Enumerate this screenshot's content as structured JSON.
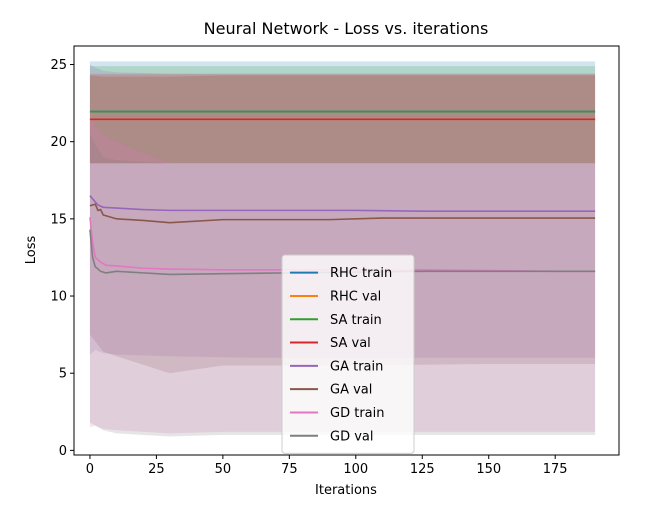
{
  "chart_data": {
    "type": "line",
    "title": "Neural Network - Loss vs. iterations",
    "xlabel": "Iterations",
    "ylabel": "Loss",
    "xlim": [
      -6,
      199
    ],
    "ylim": [
      -0.3,
      26.2
    ],
    "xticks": [
      0,
      25,
      50,
      75,
      100,
      125,
      150,
      175
    ],
    "yticks": [
      0,
      5,
      10,
      15,
      20,
      25
    ],
    "grid": false,
    "legend_position": "lower center",
    "series": [
      {
        "name": "RHC train",
        "color": "#1f77b4",
        "x": [
          0,
          190
        ],
        "y": [
          21.95,
          21.95
        ],
        "band_x": [
          0,
          190
        ],
        "band_lower": [
          18.6,
          18.6
        ],
        "band_upper": [
          25.2,
          25.2
        ]
      },
      {
        "name": "RHC val",
        "color": "#ff7f0e",
        "x": [
          0,
          190
        ],
        "y": [
          21.45,
          21.45
        ],
        "band_x": [
          0,
          190
        ],
        "band_lower": [
          18.6,
          18.6
        ],
        "band_upper": [
          24.3,
          24.3
        ]
      },
      {
        "name": "SA train",
        "color": "#2ca02c",
        "x": [
          0,
          190
        ],
        "y": [
          21.95,
          21.95
        ],
        "band_x": [
          0,
          190
        ],
        "band_lower": [
          18.6,
          18.6
        ],
        "band_upper": [
          24.9,
          24.9
        ]
      },
      {
        "name": "SA val",
        "color": "#d62728",
        "x": [
          0,
          190
        ],
        "y": [
          21.45,
          21.45
        ],
        "band_x": [
          0,
          190
        ],
        "band_lower": [
          18.6,
          18.6
        ],
        "band_upper": [
          24.4,
          24.4
        ]
      },
      {
        "name": "GA train",
        "color": "#9467bd",
        "x": [
          0,
          1,
          3,
          5,
          10,
          20,
          30,
          50,
          75,
          100,
          125,
          150,
          175,
          190
        ],
        "y": [
          16.5,
          16.3,
          15.9,
          15.75,
          15.7,
          15.6,
          15.55,
          15.55,
          15.55,
          15.55,
          15.5,
          15.5,
          15.5,
          15.5
        ],
        "band_x": [
          0,
          2,
          5,
          10,
          30,
          60,
          100,
          150,
          190
        ],
        "band_lower": [
          6.2,
          6.5,
          6.3,
          6.2,
          6.1,
          6.0,
          6.0,
          6.0,
          6.0
        ],
        "band_upper": [
          25.0,
          24.8,
          24.6,
          24.5,
          24.4,
          24.4,
          24.4,
          24.4,
          24.4
        ]
      },
      {
        "name": "GA val",
        "color": "#8c564b",
        "x": [
          0,
          2,
          3,
          4,
          5,
          6,
          10,
          20,
          30,
          50,
          75,
          90,
          110,
          150,
          190
        ],
        "y": [
          15.85,
          15.95,
          15.55,
          15.6,
          15.25,
          15.2,
          15.0,
          14.9,
          14.75,
          14.95,
          14.95,
          14.95,
          15.05,
          15.05,
          15.05
        ],
        "band_x": [
          0,
          5,
          10,
          30,
          50,
          100,
          150,
          190
        ],
        "band_lower": [
          7.5,
          6.4,
          6.1,
          5.0,
          5.5,
          5.5,
          5.6,
          5.6
        ],
        "band_upper": [
          24.3,
          24.2,
          24.2,
          24.2,
          24.3,
          24.3,
          24.3,
          24.3
        ]
      },
      {
        "name": "GD train",
        "color": "#e377c2",
        "x": [
          0,
          1,
          2,
          4,
          6,
          10,
          20,
          30,
          50,
          75,
          100,
          125,
          150,
          175,
          190
        ],
        "y": [
          15.1,
          13.5,
          12.5,
          12.2,
          12.0,
          11.95,
          11.8,
          11.75,
          11.7,
          11.7,
          11.7,
          11.7,
          11.65,
          11.6,
          11.6
        ],
        "band_x": [
          0,
          2,
          5,
          10,
          30,
          50,
          100,
          150,
          190
        ],
        "band_lower": [
          1.5,
          1.6,
          1.4,
          1.3,
          1.1,
          1.2,
          1.2,
          1.2,
          1.2
        ],
        "band_upper": [
          22.0,
          21.0,
          20.5,
          20.0,
          18.6,
          18.6,
          18.6,
          18.6,
          18.6
        ]
      },
      {
        "name": "GD val",
        "color": "#7f7f7f",
        "x": [
          0,
          1,
          2,
          4,
          6,
          10,
          20,
          30,
          50,
          75,
          100,
          125,
          150,
          175,
          190
        ],
        "y": [
          14.3,
          12.5,
          11.9,
          11.6,
          11.5,
          11.6,
          11.5,
          11.4,
          11.45,
          11.5,
          11.55,
          11.6,
          11.6,
          11.6,
          11.6
        ],
        "band_x": [
          0,
          2,
          5,
          10,
          30,
          50,
          100,
          150,
          190
        ],
        "band_lower": [
          1.8,
          1.6,
          1.3,
          1.1,
          0.9,
          1.0,
          1.0,
          1.0,
          1.0
        ],
        "band_upper": [
          20.5,
          19.8,
          19.0,
          18.8,
          18.6,
          18.6,
          18.6,
          18.6,
          18.6
        ]
      }
    ]
  }
}
